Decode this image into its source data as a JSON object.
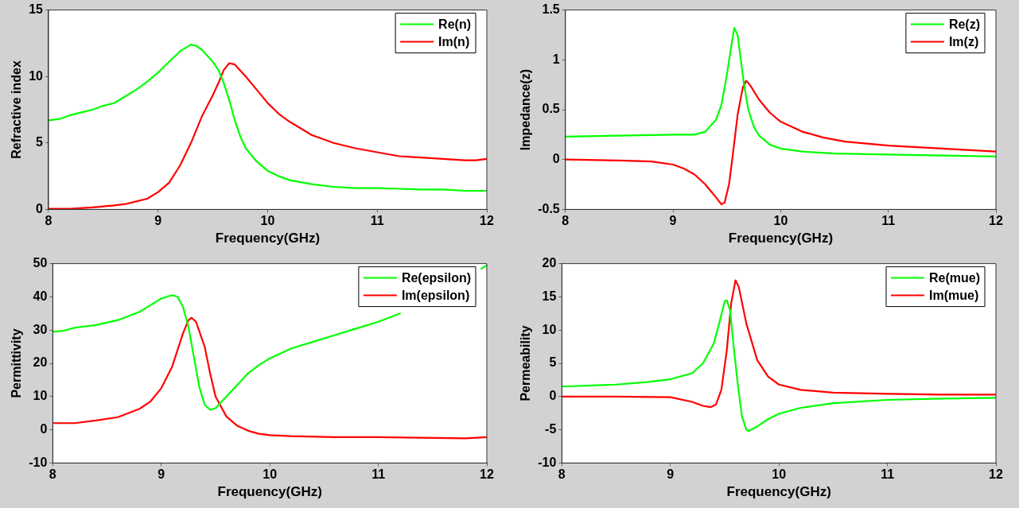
{
  "chart_data": [
    {
      "type": "line",
      "xlabel": "Frequency(GHz)",
      "ylabel": "Refractive index",
      "xlim": [
        8,
        12
      ],
      "xticks": [
        8,
        9,
        10,
        11,
        12
      ],
      "ylim": [
        0,
        15
      ],
      "yticks": [
        0,
        5,
        10,
        15
      ],
      "grid": false,
      "legend": "top right",
      "line_style": "solid",
      "marker": "none",
      "series": [
        {
          "name": "Re(n)",
          "color": "#00ff00",
          "x": [
            8,
            8.1,
            8.2,
            8.3,
            8.4,
            8.5,
            8.6,
            8.7,
            8.8,
            8.9,
            9,
            9.1,
            9.2,
            9.3,
            9.35,
            9.4,
            9.5,
            9.55,
            9.6,
            9.65,
            9.7,
            9.75,
            9.8,
            9.9,
            10,
            10.1,
            10.2,
            10.4,
            10.6,
            10.8,
            11,
            11.2,
            11.4,
            11.6,
            11.8,
            12
          ],
          "values": [
            6.7,
            6.8,
            7.1,
            7.3,
            7.5,
            7.8,
            8,
            8.5,
            9,
            9.6,
            10.3,
            11.1,
            11.9,
            12.4,
            12.3,
            12,
            11.1,
            10.5,
            9.5,
            8.2,
            6.7,
            5.5,
            4.6,
            3.6,
            2.9,
            2.5,
            2.2,
            1.9,
            1.7,
            1.6,
            1.6,
            1.55,
            1.5,
            1.5,
            1.4,
            1.4
          ]
        },
        {
          "name": "Im(n)",
          "color": "#ff0000",
          "x": [
            8,
            8.2,
            8.4,
            8.6,
            8.7,
            8.8,
            8.9,
            9,
            9.1,
            9.2,
            9.3,
            9.4,
            9.5,
            9.55,
            9.6,
            9.65,
            9.7,
            9.8,
            9.9,
            10,
            10.1,
            10.2,
            10.4,
            10.6,
            10.8,
            11,
            11.2,
            11.4,
            11.6,
            11.8,
            11.9,
            12
          ],
          "values": [
            0.05,
            0.05,
            0.15,
            0.3,
            0.4,
            0.6,
            0.8,
            1.3,
            2,
            3.3,
            5,
            7,
            8.6,
            9.5,
            10.5,
            11,
            10.9,
            10,
            9,
            8,
            7.2,
            6.6,
            5.6,
            5,
            4.6,
            4.3,
            4,
            3.9,
            3.8,
            3.7,
            3.7,
            3.8
          ]
        }
      ]
    },
    {
      "type": "line",
      "xlabel": "Frequency(GHz)",
      "ylabel": "Impedance(z)",
      "xlim": [
        8,
        12
      ],
      "xticks": [
        8,
        9,
        10,
        11,
        12
      ],
      "ylim": [
        -0.5,
        1.5
      ],
      "yticks": [
        -0.5,
        0,
        0.5,
        1,
        1.5
      ],
      "grid": false,
      "legend": "top right",
      "line_style": "solid",
      "marker": "none",
      "series": [
        {
          "name": "Re(z)",
          "color": "#00ff00",
          "x": [
            8,
            8.5,
            9,
            9.2,
            9.3,
            9.4,
            9.45,
            9.5,
            9.55,
            9.57,
            9.6,
            9.63,
            9.66,
            9.7,
            9.75,
            9.8,
            9.9,
            10,
            10.2,
            10.5,
            11,
            11.5,
            12
          ],
          "values": [
            0.23,
            0.24,
            0.25,
            0.25,
            0.28,
            0.4,
            0.55,
            0.85,
            1.2,
            1.32,
            1.25,
            1,
            0.75,
            0.5,
            0.33,
            0.24,
            0.15,
            0.11,
            0.08,
            0.06,
            0.05,
            0.04,
            0.03
          ]
        },
        {
          "name": "Im(z)",
          "color": "#ff0000",
          "x": [
            8,
            8.5,
            8.8,
            9,
            9.1,
            9.2,
            9.3,
            9.4,
            9.45,
            9.48,
            9.52,
            9.55,
            9.6,
            9.65,
            9.68,
            9.72,
            9.8,
            9.9,
            10,
            10.2,
            10.4,
            10.6,
            10.8,
            11,
            11.5,
            12
          ],
          "values": [
            0,
            -0.01,
            -0.02,
            -0.05,
            -0.09,
            -0.15,
            -0.25,
            -0.38,
            -0.45,
            -0.43,
            -0.25,
            0,
            0.45,
            0.73,
            0.79,
            0.74,
            0.6,
            0.47,
            0.38,
            0.28,
            0.22,
            0.18,
            0.16,
            0.14,
            0.11,
            0.08
          ]
        }
      ]
    },
    {
      "type": "line",
      "xlabel": "Frequency(GHz)",
      "ylabel": "Permittivity",
      "xlim": [
        8,
        12
      ],
      "xticks": [
        8,
        9,
        10,
        11,
        12
      ],
      "ylim": [
        -10,
        50
      ],
      "yticks": [
        -10,
        0,
        10,
        20,
        30,
        40,
        50
      ],
      "grid": false,
      "legend": "top right",
      "line_style": "solid",
      "marker": "none",
      "series": [
        {
          "name": "Re(epsilon)",
          "color": "#00ff00",
          "x": [
            8,
            8.1,
            8.2,
            8.4,
            8.6,
            8.8,
            8.9,
            9,
            9.1,
            9.15,
            9.2,
            9.25,
            9.3,
            9.35,
            9.4,
            9.45,
            9.5,
            9.6,
            9.7,
            9.8,
            9.9,
            10,
            10.2,
            10.4,
            10.6,
            10.8,
            11,
            11.2,
            11.4,
            11.6,
            11.8,
            11.95,
            12
          ],
          "values": [
            29.5,
            29.8,
            30.7,
            31.5,
            33,
            35.5,
            37.5,
            39.5,
            40.5,
            40,
            37,
            31,
            22,
            13,
            7.5,
            6,
            6.5,
            10,
            13.5,
            17,
            19.5,
            21.5,
            24.5,
            26.5,
            28.5,
            30.5,
            32.5,
            35,
            null,
            null,
            null,
            48.5,
            49.5
          ]
        },
        {
          "name": "Im(epsilon)",
          "color": "#ff0000",
          "x": [
            8,
            8.2,
            8.4,
            8.6,
            8.8,
            8.9,
            9,
            9.1,
            9.2,
            9.25,
            9.28,
            9.32,
            9.4,
            9.45,
            9.5,
            9.6,
            9.7,
            9.8,
            9.9,
            10,
            10.2,
            10.6,
            11,
            11.4,
            11.8,
            12
          ],
          "values": [
            2,
            2,
            2.8,
            3.8,
            6.3,
            8.5,
            12.5,
            19,
            29,
            33,
            33.7,
            32.5,
            25,
            17,
            10,
            4,
            1.2,
            -0.3,
            -1.2,
            -1.6,
            -1.9,
            -2.2,
            -2.2,
            -2.4,
            -2.6,
            -2.2
          ]
        }
      ]
    },
    {
      "type": "line",
      "xlabel": "Frequency(GHz)",
      "ylabel": "Permeability",
      "xlim": [
        8,
        12
      ],
      "xticks": [
        8,
        9,
        10,
        11,
        12
      ],
      "ylim": [
        -10,
        20
      ],
      "yticks": [
        -10,
        -5,
        0,
        5,
        10,
        15,
        20
      ],
      "grid": false,
      "legend": "top right",
      "line_style": "solid",
      "marker": "none",
      "series": [
        {
          "name": "Re(mue)",
          "color": "#00ff00",
          "x": [
            8,
            8.5,
            8.8,
            9,
            9.2,
            9.3,
            9.4,
            9.45,
            9.5,
            9.52,
            9.55,
            9.58,
            9.62,
            9.66,
            9.7,
            9.72,
            9.8,
            9.9,
            10,
            10.2,
            10.5,
            11,
            11.5,
            12
          ],
          "values": [
            1.5,
            1.8,
            2.2,
            2.6,
            3.5,
            5,
            8,
            11,
            14.3,
            14.5,
            13,
            8,
            2,
            -3,
            -5,
            -5.2,
            -4.5,
            -3.4,
            -2.6,
            -1.7,
            -1,
            -0.5,
            -0.3,
            -0.2
          ]
        },
        {
          "name": "Im(mue)",
          "color": "#ff0000",
          "x": [
            8,
            8.5,
            9,
            9.2,
            9.3,
            9.37,
            9.42,
            9.47,
            9.52,
            9.56,
            9.6,
            9.63,
            9.7,
            9.8,
            9.9,
            10,
            10.2,
            10.5,
            11,
            11.5,
            12
          ],
          "values": [
            0,
            0,
            -0.1,
            -0.8,
            -1.4,
            -1.6,
            -1.2,
            1,
            7,
            14,
            17.5,
            16.5,
            11,
            5.5,
            3,
            1.8,
            1,
            0.6,
            0.4,
            0.3,
            0.3
          ]
        }
      ]
    }
  ]
}
